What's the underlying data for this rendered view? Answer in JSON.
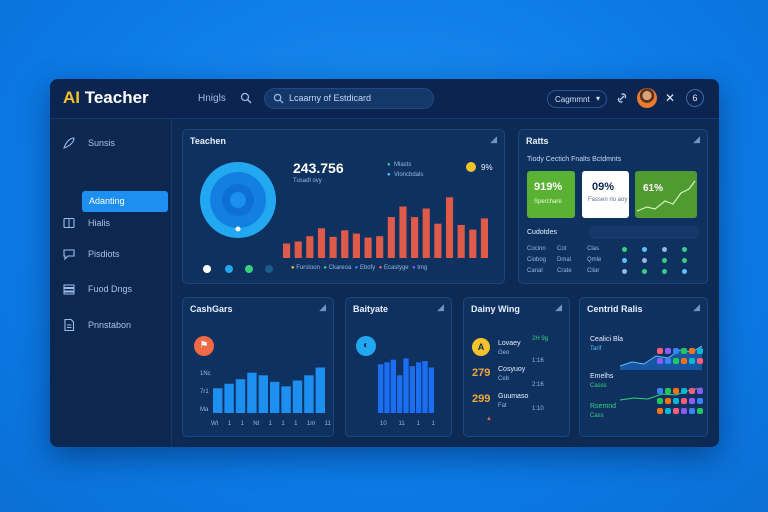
{
  "app": {
    "logo_ai": "AI",
    "logo_rest": "Teacher"
  },
  "header": {
    "nav_link": "Hnigls",
    "search_text": "Lcaarny of Estdicard",
    "dropdown_label": "Cagmmnt",
    "badge_text": "6"
  },
  "sidebar": {
    "items": [
      {
        "label": "Sunsis",
        "icon": "feather-icon"
      },
      {
        "label": "Adanting",
        "icon": "none",
        "active": true
      },
      {
        "label": "Hialis",
        "icon": "book-icon"
      },
      {
        "label": "Pisdiots",
        "icon": "chat-icon"
      },
      {
        "label": "Fuod Dngs",
        "icon": "stack-icon"
      },
      {
        "label": "Pnnstabon",
        "icon": "document-icon"
      }
    ]
  },
  "teacher_card": {
    "title": "Teachen",
    "big_number": "243.756",
    "sub_label": "Tusadl ovy",
    "legend_top": [
      "Mlasts",
      "Vloncbdals"
    ],
    "percent_badge": "9%",
    "dot_legend": [
      "Furstoon",
      "Ckareoa",
      "Ebofy",
      "Ecastyge",
      "Img"
    ],
    "donut_colors": [
      "#21a8f0",
      "#0e6fd8"
    ],
    "bars": [
      0.22,
      0.25,
      0.33,
      0.45,
      0.32,
      0.42,
      0.37,
      0.31,
      0.33,
      0.62,
      0.78,
      0.62,
      0.75,
      0.52,
      0.92,
      0.5,
      0.43,
      0.6
    ],
    "bar_color": "#e05a4a"
  },
  "right_top_card": {
    "title": "Ratts",
    "subtitle": "Tiody Cectich Fnalts Bctdmnts",
    "tiles": [
      {
        "value": "919%",
        "label": "Sperchare",
        "bg": "#5ab234"
      },
      {
        "value": "09%",
        "label": "Fassen rio aoy",
        "bg": "#ffffff"
      },
      {
        "value": "61%",
        "label": "",
        "bg": "#4f9a31"
      }
    ],
    "table_header": "Cudotdes",
    "rows": [
      [
        "Cocinn",
        "Cot",
        "Clas"
      ],
      [
        "Ciobog",
        "Dmal",
        "Qmle"
      ],
      [
        "Canal",
        "Crate",
        "Cliar"
      ]
    ]
  },
  "card_cashbars": {
    "title": "CashGars",
    "ylabels": [
      "1Nc",
      "7r1",
      "Ma"
    ],
    "xlabels": [
      "Wt",
      "1",
      "1",
      "Nt",
      "1",
      "1",
      "1",
      "1m",
      "11"
    ],
    "bars": [
      0.38,
      0.45,
      0.52,
      0.62,
      0.58,
      0.48,
      0.41,
      0.5,
      0.58,
      0.7
    ],
    "accent": "#1d8ff0"
  },
  "card_baityate": {
    "title": "Baityate",
    "xlabels": [
      "10",
      "11",
      "1",
      "1"
    ],
    "bars": [
      0.75,
      0.78,
      0.82,
      0.58,
      0.84,
      0.72,
      0.78,
      0.8,
      0.7
    ],
    "accent": "#1b6ef2"
  },
  "card_daily": {
    "title": "Dainy Wing",
    "rows": [
      {
        "title": "Lovaey",
        "sub": "Geo",
        "right": "2H 9g",
        "right2": "1:16"
      },
      {
        "title": "Cosyuoy",
        "sub": "Ceb",
        "value": "279",
        "right": "2:16"
      },
      {
        "title": "Guumaso",
        "sub": "Fat",
        "value": "299",
        "right": "1:10"
      }
    ]
  },
  "card_central": {
    "title": "Centrid Ralis",
    "items": [
      {
        "title": "Cealici Bla",
        "sub": "Tarif",
        "color": "#5cc1ff"
      },
      {
        "title": "Emelhs",
        "sub": "Casss",
        "color": "#36d07f"
      },
      {
        "title": "Rsemnd",
        "sub": "Cass",
        "color": "#36d07f"
      }
    ],
    "dot_palette": [
      "#ff5d7a",
      "#8b5cf6",
      "#3b82f6",
      "#22c55e",
      "#f97316",
      "#06b6d4"
    ]
  }
}
